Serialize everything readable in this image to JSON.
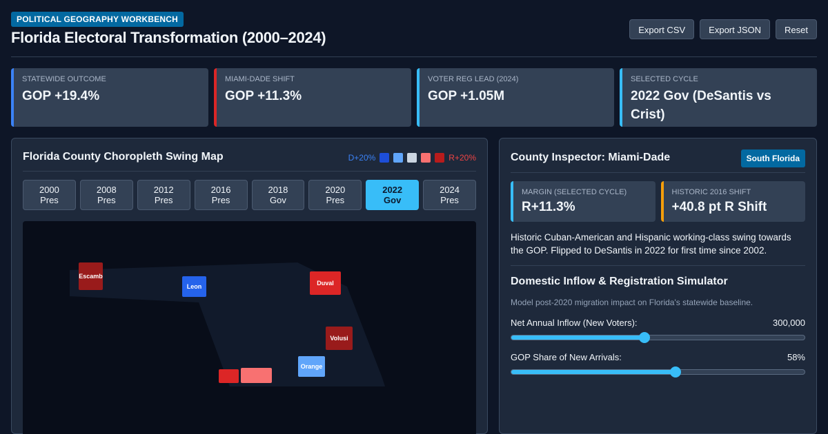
{
  "header": {
    "kicker": "POLITICAL GEOGRAPHY WORKBENCH",
    "title": "Florida Electoral Transformation (2000–2024)",
    "buttons": {
      "export_csv": "Export CSV",
      "export_json": "Export JSON",
      "reset": "Reset"
    }
  },
  "stats": [
    {
      "label": "STATEWIDE OUTCOME",
      "value": "GOP +19.4%",
      "accent": "#3b82f6"
    },
    {
      "label": "MIAMI-DADE SHIFT",
      "value": "GOP +11.3%",
      "accent": "#dc2626"
    },
    {
      "label": "VOTER REG LEAD (2024)",
      "value": "GOP +1.05M",
      "accent": "#38bdf8"
    },
    {
      "label": "SELECTED CYCLE",
      "value": "2022 Gov (DeSantis vs Crist)",
      "accent": "#38bdf8"
    }
  ],
  "map": {
    "title": "Florida County Choropleth Swing Map",
    "legend": {
      "left_label": "D+20%",
      "right_label": "R+20%",
      "colors": [
        "#1d4ed8",
        "#60a5fa",
        "#cbd5e1",
        "#f87171",
        "#b91c1c"
      ]
    },
    "cycles": [
      {
        "year": "2000",
        "type": "Pres",
        "active": false
      },
      {
        "year": "2008",
        "type": "Pres",
        "active": false
      },
      {
        "year": "2012",
        "type": "Pres",
        "active": false
      },
      {
        "year": "2016",
        "type": "Pres",
        "active": false
      },
      {
        "year": "2018",
        "type": "Gov",
        "active": false
      },
      {
        "year": "2020",
        "type": "Pres",
        "active": false
      },
      {
        "year": "2022",
        "type": "Gov",
        "active": true
      },
      {
        "year": "2024",
        "type": "Pres",
        "active": false
      }
    ],
    "counties": [
      {
        "name": "Escamb",
        "color": "#991b1b"
      },
      {
        "name": "Leon",
        "color": "#2563eb"
      },
      {
        "name": "Duval",
        "color": "#dc2626"
      },
      {
        "name": "Volusi",
        "color": "#991b1b"
      },
      {
        "name": "Orange",
        "color": "#60a5fa"
      },
      {
        "name": "",
        "color": "#dc2626"
      },
      {
        "name": "",
        "color": "#f87171"
      }
    ]
  },
  "inspector": {
    "title": "County Inspector: Miami-Dade",
    "region": "South Florida",
    "stats": [
      {
        "label": "MARGIN (SELECTED CYCLE)",
        "value": "R+11.3%",
        "accent": "#38bdf8"
      },
      {
        "label": "HISTORIC 2016 SHIFT",
        "value": "+40.8 pt R Shift",
        "accent": "#f59e0b"
      }
    ],
    "description": "Historic Cuban-American and Hispanic working-class swing towards the GOP. Flipped to DeSantis in 2022 for first time since 2002.",
    "simulator": {
      "title": "Domestic Inflow & Registration Simulator",
      "subtitle": "Model post-2020 migration impact on Florida's statewide baseline.",
      "sliders": [
        {
          "label": "Net Annual Inflow (New Voters):",
          "value": "300,000",
          "fraction": 0.455
        },
        {
          "label": "GOP Share of New Arrivals:",
          "value": "58%",
          "fraction": 0.56
        }
      ]
    }
  }
}
